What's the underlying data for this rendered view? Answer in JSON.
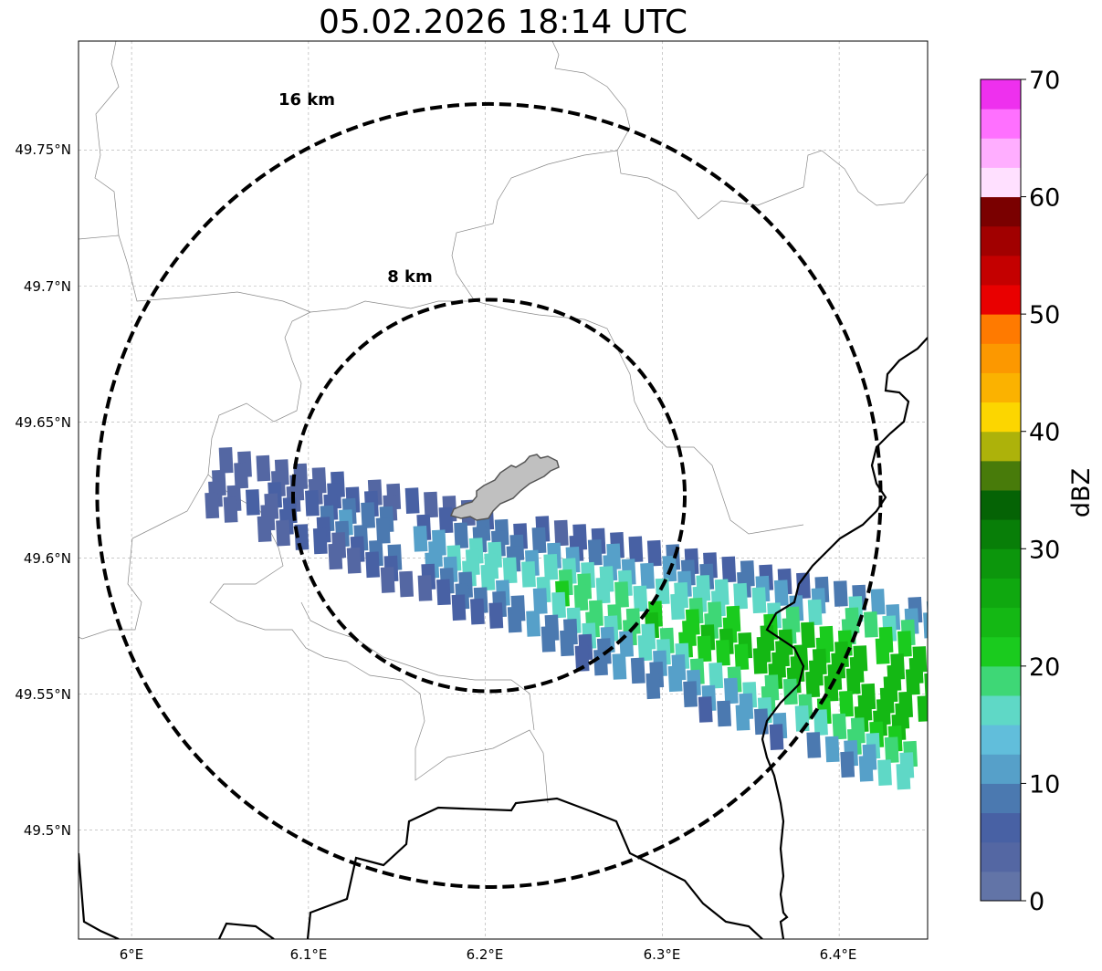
{
  "title": "05.02.2026 18:14 UTC",
  "map": {
    "lon_range": [
      5.97,
      6.45
    ],
    "lat_range": [
      49.46,
      49.79
    ],
    "x_ticks": [
      {
        "value": 6.0,
        "label": "6°E"
      },
      {
        "value": 6.1,
        "label": "6.1°E"
      },
      {
        "value": 6.2,
        "label": "6.2°E"
      },
      {
        "value": 6.3,
        "label": "6.3°E"
      },
      {
        "value": 6.4,
        "label": "6.4°E"
      }
    ],
    "y_ticks": [
      {
        "value": 49.5,
        "label": "49.5°N"
      },
      {
        "value": 49.55,
        "label": "49.55°N"
      },
      {
        "value": 49.6,
        "label": "49.6°N"
      },
      {
        "value": 49.65,
        "label": "49.65°N"
      },
      {
        "value": 49.7,
        "label": "49.7°N"
      },
      {
        "value": 49.75,
        "label": "49.75°N"
      }
    ],
    "grid": true,
    "radar_center": {
      "lon": 6.202,
      "lat": 49.623
    },
    "range_rings": [
      {
        "radius_km": 8,
        "label": "8 km"
      },
      {
        "radius_km": 16,
        "label": "16 km"
      }
    ],
    "echo_band_color_values_dbz": [
      3,
      6,
      9,
      12,
      15,
      18,
      21,
      24
    ]
  },
  "colorbar": {
    "label": "dBZ",
    "min": 0,
    "max": 70,
    "tick_values": [
      0,
      10,
      20,
      30,
      40,
      50,
      60,
      70
    ],
    "tick_labels": [
      "0",
      "10",
      "20",
      "30",
      "40",
      "50",
      "60",
      "70"
    ],
    "colors": [
      "#6274a7",
      "#5467a3",
      "#4861a4",
      "#4b79b0",
      "#56a0c9",
      "#61bedb",
      "#5fd8c6",
      "#3ed776",
      "#1acb1e",
      "#14b814",
      "#0fa80f",
      "#0c960c",
      "#087e08",
      "#056305",
      "#487b0a",
      "#adb20a",
      "#fcd600",
      "#fbb200",
      "#fc9800",
      "#ff7a00",
      "#e90000",
      "#c40000",
      "#a10000",
      "#7a0000",
      "#ffe0ff",
      "#ffaeff",
      "#ff70ff",
      "#ee30ee"
    ]
  }
}
